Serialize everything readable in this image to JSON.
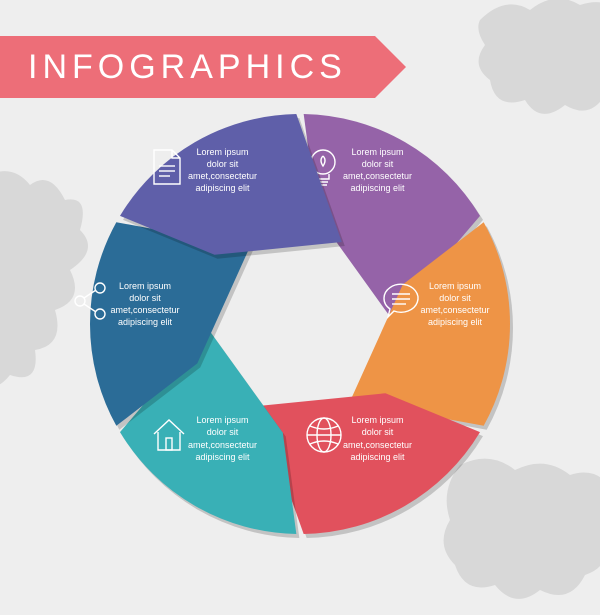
{
  "title": "INFOGRAPHICS",
  "title_banner_color": "#ed6e78",
  "title_fontsize": 34,
  "title_letter_spacing": 5,
  "background_color": "#eeeeee",
  "map_decoration_color": "#d8d8d8",
  "chart": {
    "type": "circular-aperture-infographic",
    "outer_radius": 210,
    "inner_radius": 92,
    "segment_gap_deg": 2,
    "segment_shadow": "rgba(0,0,0,0.18)",
    "segments": [
      {
        "angle_start": -90,
        "color": "#9563a8",
        "icon": "lightbulb-icon",
        "text": "Lorem ipsum\ndolor sit\namet,consectetur\nadipiscing elit"
      },
      {
        "angle_start": -30,
        "color": "#ee9446",
        "icon": "speech-bubble-icon",
        "text": "Lorem ipsum\ndolor sit\namet,consectetur\nadipiscing elit"
      },
      {
        "angle_start": 30,
        "color": "#e1515d",
        "icon": "globe-icon",
        "text": "Lorem ipsum\ndolor sit\namet,consectetur\nadipiscing elit"
      },
      {
        "angle_start": 90,
        "color": "#39b0b6",
        "icon": "house-icon",
        "text": "Lorem ipsum\ndolor sit\namet,consectetur\nadipiscing elit"
      },
      {
        "angle_start": 150,
        "color": "#2b6c97",
        "icon": "share-icon",
        "text": "Lorem ipsum\ndolor sit\namet,consectetur\nadipiscing elit"
      },
      {
        "angle_start": 210,
        "color": "#5f5fa9",
        "icon": "document-icon",
        "text": "Lorem ipsum\ndolor sit\namet,consectetur\nadipiscing elit"
      }
    ],
    "text_fontsize": 9,
    "icon_size": 40
  }
}
